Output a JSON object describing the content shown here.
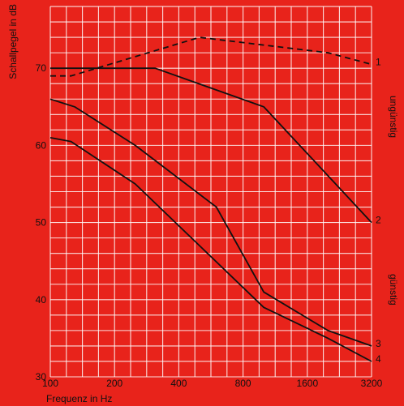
{
  "chart_data": {
    "type": "line",
    "xlabel": "Frequenz in Hz",
    "ylabel": "Schallpegel in dB",
    "x_scale": "log",
    "x_ticks": [
      "100",
      "200",
      "400",
      "800",
      "1600",
      "3200"
    ],
    "x_tick_values": [
      100,
      200,
      400,
      800,
      1600,
      3200
    ],
    "y_ticks": [
      "30",
      "40",
      "50",
      "60",
      "70"
    ],
    "y_tick_values": [
      30,
      40,
      50,
      60,
      70
    ],
    "xlim": [
      100,
      3200
    ],
    "ylim": [
      30,
      78
    ],
    "grid": true,
    "annotations": {
      "top": "ungünstig",
      "bottom": "günstig"
    },
    "series": [
      {
        "label": "1",
        "style": "dashed",
        "color": "#111111",
        "points": [
          [
            100,
            69
          ],
          [
            125,
            69
          ],
          [
            250,
            71.5
          ],
          [
            500,
            74
          ],
          [
            1000,
            73
          ],
          [
            2000,
            72
          ],
          [
            3200,
            70.5
          ]
        ]
      },
      {
        "label": "2",
        "style": "solid",
        "color": "#111111",
        "points": [
          [
            100,
            70
          ],
          [
            310,
            70
          ],
          [
            1000,
            65
          ],
          [
            3200,
            50
          ]
        ]
      },
      {
        "label": "3",
        "style": "solid",
        "color": "#111111",
        "points": [
          [
            100,
            66
          ],
          [
            130,
            65
          ],
          [
            250,
            60
          ],
          [
            600,
            52
          ],
          [
            1000,
            41
          ],
          [
            2000,
            36
          ],
          [
            3200,
            34
          ]
        ]
      },
      {
        "label": "4",
        "style": "solid",
        "color": "#111111",
        "points": [
          [
            100,
            61
          ],
          [
            125,
            60.5
          ],
          [
            250,
            55
          ],
          [
            500,
            47
          ],
          [
            1000,
            39
          ],
          [
            2000,
            35
          ],
          [
            3200,
            32
          ]
        ]
      }
    ]
  }
}
